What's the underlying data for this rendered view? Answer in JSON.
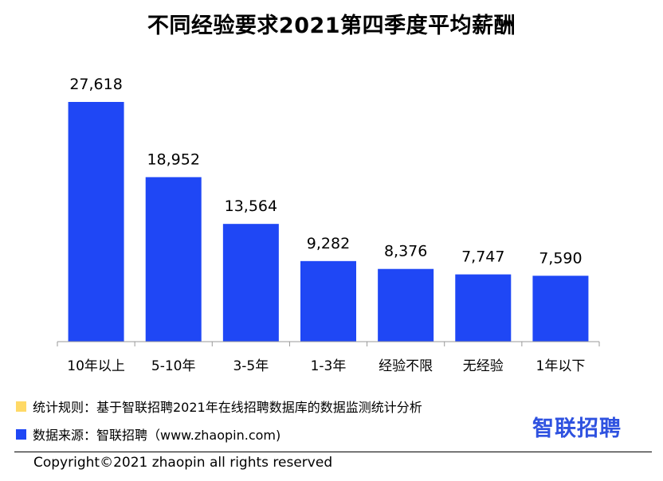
{
  "chart_data": {
    "type": "bar",
    "title": "不同经验要求2021第四季度平均薪酬",
    "categories": [
      "10年以上",
      "5-10年",
      "3-5年",
      "1-3年",
      "经验不限",
      "无经验",
      "1年以下"
    ],
    "values": [
      27618,
      18952,
      13564,
      9282,
      8376,
      7747,
      7590
    ],
    "value_labels": [
      "27,618",
      "18,952",
      "13,564",
      "9,282",
      "8,376",
      "7,747",
      "7,590"
    ],
    "bar_color": "#1f47f5",
    "ylim": [
      0,
      27618
    ],
    "grid": false,
    "xlabel": "",
    "ylabel": ""
  },
  "notes": {
    "rule": {
      "text": "统计规则：基于智联招聘2021年在线招聘数据库的数据监测统计分析",
      "color": "#ffd966"
    },
    "source": {
      "text": "数据来源：智联招聘（www.zhaopin.com)",
      "color": "#1f47f5"
    }
  },
  "brand": "智联招聘",
  "copyright": "Copyright©2021 zhaopin all rights reserved"
}
